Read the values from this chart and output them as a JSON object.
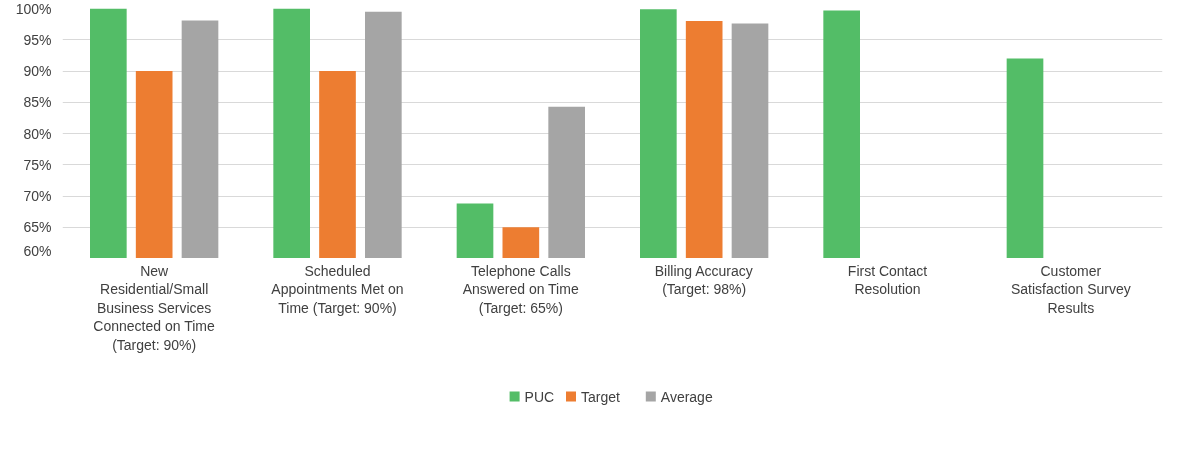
{
  "chart_data": {
    "type": "bar",
    "categories": [
      "New Residential/Small Business Services Connected on Time (Target: 90%)",
      "Scheduled Appointments Met on Time (Target: 90%)",
      "Telephone Calls Answered on Time (Target: 65%)",
      "Billing Accuracy (Target: 98%)",
      "First Contact Resolution",
      "Customer Satisfaction Survey Results"
    ],
    "series": [
      {
        "name": "PUC",
        "color": "#53bd67",
        "values": [
          100,
          100,
          68.8,
          99.9,
          99.7,
          92
        ]
      },
      {
        "name": "Target",
        "color": "#ed7d31",
        "values": [
          90,
          90,
          65,
          98,
          null,
          null
        ]
      },
      {
        "name": "Average",
        "color": "#a5a5a5",
        "values": [
          98.1,
          99.5,
          84.3,
          97.6,
          null,
          null
        ]
      }
    ],
    "ylim": [
      60,
      100
    ],
    "yticks": [
      {
        "value": 60,
        "label": "60%"
      },
      {
        "value": 65,
        "label": "65%"
      },
      {
        "value": 70,
        "label": "70%"
      },
      {
        "value": 75,
        "label": "75%"
      },
      {
        "value": 80,
        "label": "80%"
      },
      {
        "value": 85,
        "label": "85%"
      },
      {
        "value": 90,
        "label": "90%"
      },
      {
        "value": 95,
        "label": "95%"
      },
      {
        "value": 100,
        "label": "100%"
      }
    ],
    "grid": "y",
    "legend": "bottom"
  }
}
